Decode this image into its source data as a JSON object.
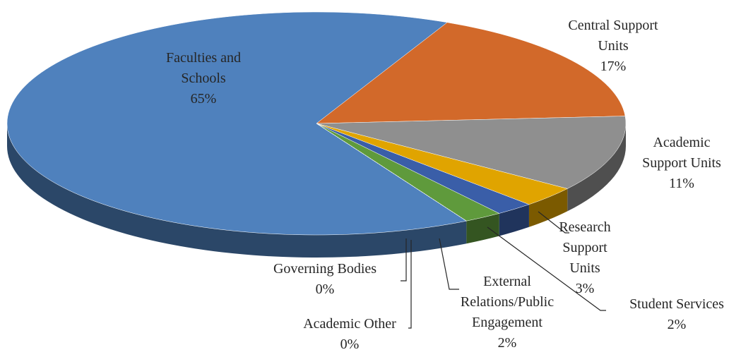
{
  "chart_data": {
    "type": "pie",
    "categories": [
      "Faculties and Schools",
      "Central Support Units",
      "Academic Support Units",
      "Research Support Units",
      "Student Services",
      "External Relations/Public Engagement",
      "Academic Other",
      "Governing Bodies"
    ],
    "values": [
      65,
      17,
      11,
      3,
      2,
      2,
      0,
      0
    ],
    "value_labels": [
      "65%",
      "17%",
      "11%",
      "3%",
      "2%",
      "2%",
      "0%",
      "0%"
    ],
    "colors": [
      "#4f81bd",
      "#d2692a",
      "#8f8f8f",
      "#e0a400",
      "#3a5ea8",
      "#5f9a3c",
      "#9dc3e6",
      "#f2a07c"
    ]
  }
}
